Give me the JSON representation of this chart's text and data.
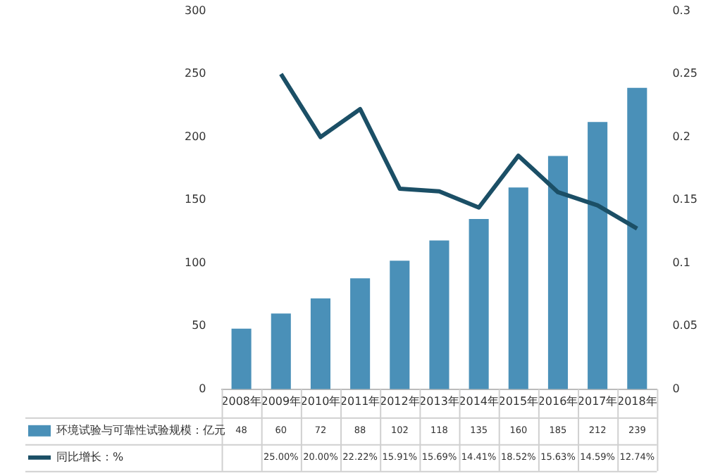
{
  "chart_data": {
    "type": "bar",
    "categories": [
      "2008年",
      "2009年",
      "2010年",
      "2011年",
      "2012年",
      "2013年",
      "2014年",
      "2015年",
      "2016年",
      "2017年",
      "2018年"
    ],
    "series": [
      {
        "name": "环境试验与可靠性试验规模：亿元",
        "color": "#4a90b8",
        "values": [
          48,
          60,
          72,
          88,
          102,
          118,
          135,
          160,
          185,
          212,
          239
        ],
        "value_labels": [
          "48",
          "60",
          "72",
          "88",
          "102",
          "118",
          "135",
          "160",
          "185",
          "212",
          "239"
        ]
      },
      {
        "name": "同比增长：%",
        "type": "line",
        "axis": "y2",
        "color": "#1b4f66",
        "values": [
          null,
          0.25,
          0.2,
          0.2222,
          0.1591,
          0.1569,
          0.1441,
          0.1852,
          0.1563,
          0.1459,
          0.1274
        ],
        "value_labels": [
          null,
          "25.00%",
          "20.00%",
          "22.22%",
          "15.91%",
          "15.69%",
          "14.41%",
          "18.52%",
          "15.63%",
          "14.59%",
          "12.74%"
        ]
      }
    ],
    "ylim": [
      0,
      300
    ],
    "yticks": [
      0,
      50,
      100,
      150,
      200,
      250,
      300
    ],
    "y2lim": [
      0,
      0.3
    ],
    "y2ticks": [
      0,
      0.05,
      0.1,
      0.15,
      0.2,
      0.25,
      0.3
    ],
    "grid": false,
    "legend": "bottom",
    "marker": "none"
  }
}
